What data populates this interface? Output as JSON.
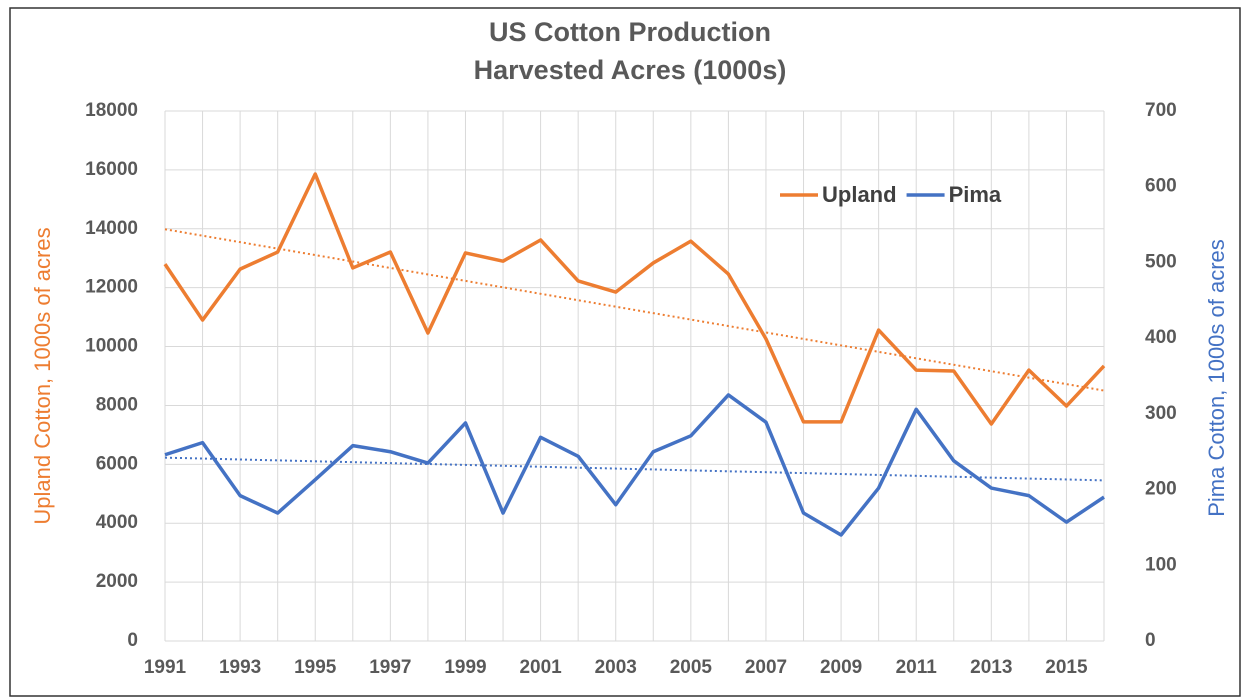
{
  "chart_data": {
    "type": "line",
    "title": "US Cotton Production",
    "subtitle": "Harvested Acres (1000s)",
    "y_label": "Upland Cotton, 1000s of acres",
    "y2_label": "Pima Cotton, 1000s of acres",
    "x": [
      1991,
      1992,
      1993,
      1994,
      1995,
      1996,
      1997,
      1998,
      1999,
      2000,
      2001,
      2002,
      2003,
      2004,
      2005,
      2006,
      2007,
      2008,
      2009,
      2010,
      2011,
      2012,
      2013,
      2014,
      2015,
      2016
    ],
    "xlim": [
      1991,
      2016
    ],
    "xticks": [
      1991,
      1993,
      1995,
      1997,
      1999,
      2001,
      2003,
      2005,
      2007,
      2009,
      2011,
      2013,
      2015
    ],
    "ylim": [
      0,
      18000
    ],
    "yticks": [
      0,
      2000,
      4000,
      6000,
      8000,
      10000,
      12000,
      14000,
      16000,
      18000
    ],
    "y2lim": [
      0,
      700
    ],
    "y2ticks": [
      0,
      100,
      200,
      300,
      400,
      500,
      600,
      700
    ],
    "grid": true,
    "trendline": true,
    "legend": "top-right",
    "series": [
      {
        "name": "Upland",
        "color": "#ed7d31",
        "axis": "y",
        "values": [
          12800,
          10900,
          12630,
          13210,
          15860,
          12670,
          13210,
          10460,
          13180,
          12900,
          13620,
          12230,
          11850,
          12840,
          13580,
          12460,
          10260,
          7440,
          7440,
          10560,
          9200,
          9170,
          7370,
          9200,
          7980,
          9340
        ]
      },
      {
        "name": "Pima",
        "color": "#4472c4",
        "axis": "y2",
        "values": [
          246,
          262,
          192,
          169,
          213,
          258,
          250,
          235,
          288,
          169,
          269,
          244,
          180,
          250,
          271,
          325,
          289,
          169,
          140,
          202,
          306,
          238,
          202,
          192,
          157,
          190
        ]
      }
    ]
  }
}
